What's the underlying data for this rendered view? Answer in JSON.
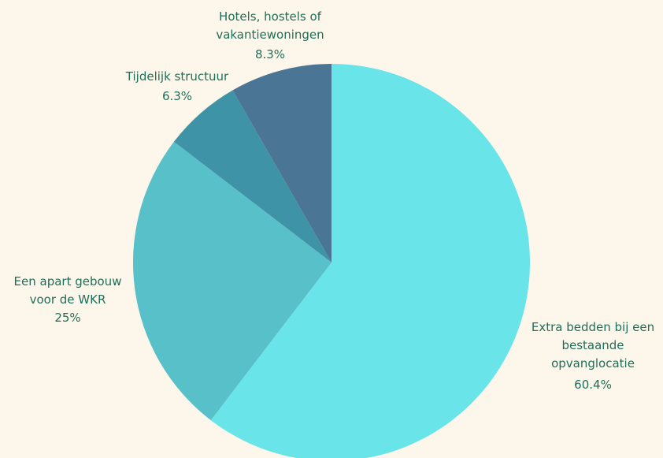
{
  "chart_data": {
    "type": "pie",
    "start_angle_deg": 0,
    "direction": "clockwise",
    "slices": [
      {
        "label_lines": [
          "Extra bedden bij een",
          "bestaande",
          "opvanglocatie"
        ],
        "value_label": "60.4%",
        "value": 60.4,
        "color": "#69e4e8"
      },
      {
        "label_lines": [
          "Een apart gebouw",
          "voor de WKR"
        ],
        "value_label": "25%",
        "value": 25.0,
        "color": "#58c0c8"
      },
      {
        "label_lines": [
          "Tijdelijk structuur"
        ],
        "value_label": "6.3%",
        "value": 6.3,
        "color": "#3e93a7"
      },
      {
        "label_lines": [
          "Hotels, hostels of",
          "vakantiewoningen"
        ],
        "value_label": "8.3%",
        "value": 8.3,
        "color": "#4b7595"
      }
    ],
    "colors": {
      "background": "#fdf6ea",
      "label_text": "#1f6e5a"
    }
  }
}
